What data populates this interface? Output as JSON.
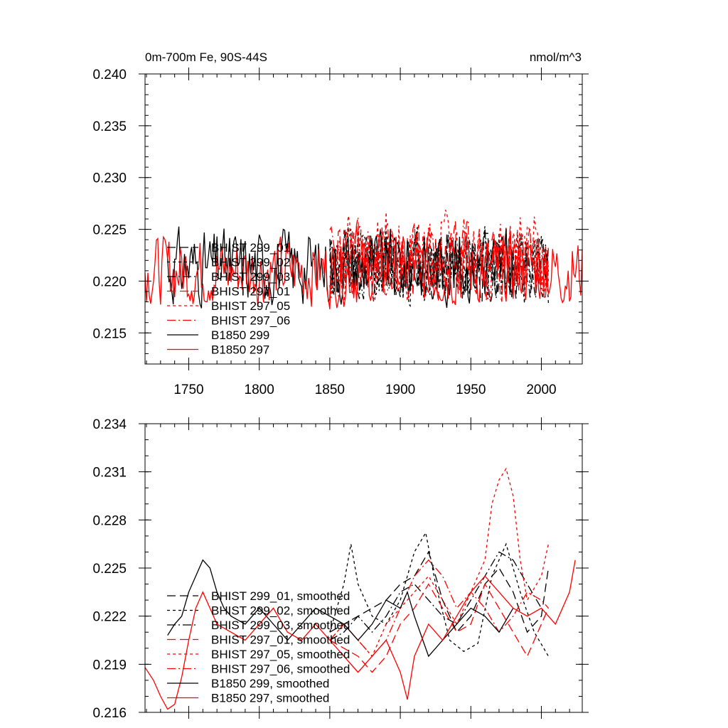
{
  "colors": {
    "black": "#000000",
    "red": "#ff0000"
  },
  "chart_data": [
    {
      "type": "line",
      "title": "0m-700m Fe, 90S-44S",
      "units": "nmol/m^3",
      "xlabel": "",
      "ylabel": "",
      "xlim": [
        1719,
        2029
      ],
      "ylim": [
        0.212,
        0.24
      ],
      "xticks": [
        1750,
        1800,
        1850,
        1900,
        1950,
        2000
      ],
      "xtick_labels": [
        "1750",
        "1800",
        "1850",
        "1900",
        "1950",
        "2000"
      ],
      "yticks": [
        0.215,
        0.22,
        0.225,
        0.23,
        0.235,
        0.24
      ],
      "ytick_labels": [
        "0.215",
        "0.220",
        "0.225",
        "0.230",
        "0.235",
        "0.240"
      ],
      "legend": [
        "BHIST 299_01",
        "BHIST 299_02",
        "BHIST 299_03",
        "BHIST 297_01",
        "BHIST 297_05",
        "BHIST 297_06",
        "B1850 299",
        "B1850 297"
      ],
      "series": [
        {
          "name": "BHIST 299_01",
          "color": "#000000",
          "dash": "long",
          "x_start": 1850,
          "x_end": 2005,
          "mean": 0.2215,
          "amp": 0.0035,
          "seed": 11
        },
        {
          "name": "BHIST 299_02",
          "color": "#000000",
          "dash": "short",
          "x_start": 1850,
          "x_end": 2005,
          "mean": 0.2215,
          "amp": 0.0038,
          "seed": 12
        },
        {
          "name": "BHIST 299_03",
          "color": "#000000",
          "dash": "dashdot",
          "x_start": 1850,
          "x_end": 2005,
          "mean": 0.2215,
          "amp": 0.0033,
          "seed": 13
        },
        {
          "name": "BHIST 297_01",
          "color": "#ff0000",
          "dash": "long",
          "x_start": 1850,
          "x_end": 2005,
          "mean": 0.222,
          "amp": 0.0035,
          "seed": 21
        },
        {
          "name": "BHIST 297_05",
          "color": "#ff0000",
          "dash": "short",
          "x_start": 1850,
          "x_end": 2005,
          "mean": 0.2225,
          "amp": 0.004,
          "seed": 22
        },
        {
          "name": "BHIST 297_06",
          "color": "#ff0000",
          "dash": "dashdot",
          "x_start": 1850,
          "x_end": 2005,
          "mean": 0.2222,
          "amp": 0.0035,
          "seed": 23
        },
        {
          "name": "B1850 299",
          "color": "#000000",
          "dash": "solid",
          "x_start": 1735,
          "x_end": 1980,
          "mean": 0.2215,
          "amp": 0.0035,
          "seed": 31
        },
        {
          "name": "B1850 297",
          "color": "#ff0000",
          "dash": "solid",
          "x_start": 1719,
          "x_end": 2029,
          "mean": 0.221,
          "amp": 0.0033,
          "seed": 32
        }
      ]
    },
    {
      "type": "line",
      "title": "",
      "xlabel": "",
      "ylabel": "",
      "xlim": [
        1719,
        2029
      ],
      "ylim": [
        0.216,
        0.234
      ],
      "xticks": [
        1750,
        1800,
        1850,
        1900,
        1950,
        2000
      ],
      "yticks": [
        0.216,
        0.219,
        0.222,
        0.225,
        0.228,
        0.231,
        0.234
      ],
      "ytick_labels": [
        "0.216",
        "0.219",
        "0.222",
        "0.225",
        "0.228",
        "0.231",
        "0.234"
      ],
      "legend": [
        "BHIST 299_01, smoothed",
        "BHIST 299_02, smoothed",
        "BHIST 299_03, smoothed",
        "BHIST 297_01, smoothed",
        "BHIST 297_05, smoothed",
        "BHIST 297_06, smoothed",
        "B1850 299, smoothed",
        "B1850 297, smoothed"
      ],
      "series": [
        {
          "name": "BHIST 299_01, smoothed",
          "color": "#000000",
          "dash": "long",
          "x": [
            1850,
            1870,
            1890,
            1900,
            1910,
            1920,
            1930,
            1940,
            1950,
            1960,
            1970,
            1980,
            1990,
            2000,
            2005
          ],
          "y": [
            0.221,
            0.222,
            0.223,
            0.224,
            0.2245,
            0.226,
            0.223,
            0.221,
            0.222,
            0.224,
            0.225,
            0.2235,
            0.221,
            0.222,
            0.225
          ]
        },
        {
          "name": "BHIST 299_02, smoothed",
          "color": "#000000",
          "dash": "short",
          "x": [
            1850,
            1860,
            1865,
            1870,
            1880,
            1890,
            1900,
            1910,
            1918,
            1925,
            1935,
            1945,
            1955,
            1965,
            1975,
            1985,
            1995,
            2005
          ],
          "y": [
            0.221,
            0.224,
            0.2265,
            0.224,
            0.222,
            0.2215,
            0.223,
            0.226,
            0.2272,
            0.224,
            0.2205,
            0.2198,
            0.2203,
            0.2245,
            0.2265,
            0.2235,
            0.221,
            0.2195
          ]
        },
        {
          "name": "BHIST 299_03, smoothed",
          "color": "#000000",
          "dash": "dashdot",
          "x": [
            1850,
            1860,
            1870,
            1880,
            1890,
            1900,
            1910,
            1920,
            1930,
            1940,
            1950,
            1960,
            1970,
            1980,
            1990,
            2000
          ],
          "y": [
            0.2205,
            0.221,
            0.222,
            0.221,
            0.222,
            0.2235,
            0.224,
            0.223,
            0.222,
            0.2215,
            0.223,
            0.2245,
            0.226,
            0.2255,
            0.224,
            0.2225
          ]
        },
        {
          "name": "BHIST 297_01, smoothed",
          "color": "#ff0000",
          "dash": "long",
          "x": [
            1850,
            1860,
            1870,
            1880,
            1890,
            1900,
            1910,
            1920,
            1930,
            1940,
            1950,
            1960,
            1970,
            1980,
            1990,
            2000,
            2005
          ],
          "y": [
            0.2205,
            0.22,
            0.2195,
            0.2185,
            0.2195,
            0.2215,
            0.2225,
            0.224,
            0.2225,
            0.221,
            0.2215,
            0.224,
            0.2225,
            0.221,
            0.2195,
            0.2215,
            0.2225
          ]
        },
        {
          "name": "BHIST 297_05, smoothed",
          "color": "#ff0000",
          "dash": "short",
          "x": [
            1850,
            1860,
            1870,
            1880,
            1890,
            1900,
            1910,
            1920,
            1930,
            1940,
            1950,
            1960,
            1965,
            1970,
            1975,
            1980,
            1985,
            1990,
            2000,
            2005
          ],
          "y": [
            0.2205,
            0.2215,
            0.2205,
            0.2195,
            0.2215,
            0.2225,
            0.2235,
            0.2245,
            0.223,
            0.2215,
            0.2235,
            0.2255,
            0.229,
            0.2305,
            0.2312,
            0.2295,
            0.2255,
            0.223,
            0.2245,
            0.2265
          ]
        },
        {
          "name": "BHIST 297_06, smoothed",
          "color": "#ff0000",
          "dash": "dashdot",
          "x": [
            1850,
            1860,
            1870,
            1880,
            1890,
            1900,
            1910,
            1920,
            1930,
            1940,
            1950,
            1960,
            1970,
            1980,
            1990,
            2000,
            2005
          ],
          "y": [
            0.2205,
            0.2215,
            0.2205,
            0.2195,
            0.2205,
            0.2225,
            0.2245,
            0.2255,
            0.2245,
            0.2225,
            0.2235,
            0.2225,
            0.221,
            0.222,
            0.2235,
            0.223,
            0.2225
          ]
        },
        {
          "name": "B1850 299, smoothed",
          "color": "#000000",
          "dash": "solid",
          "x": [
            1735,
            1740,
            1745,
            1750,
            1755,
            1760,
            1765,
            1770,
            1775,
            1780,
            1790,
            1800,
            1810,
            1820,
            1830,
            1840,
            1850,
            1860,
            1870,
            1880,
            1890,
            1900,
            1905,
            1910,
            1920,
            1930,
            1940,
            1950,
            1960,
            1970,
            1980
          ],
          "y": [
            0.2208,
            0.2215,
            0.222,
            0.2235,
            0.2245,
            0.2255,
            0.225,
            0.2235,
            0.2225,
            0.222,
            0.2215,
            0.2225,
            0.2215,
            0.2205,
            0.2215,
            0.2225,
            0.222,
            0.2215,
            0.2205,
            0.2215,
            0.223,
            0.2225,
            0.2235,
            0.222,
            0.2195,
            0.2205,
            0.2215,
            0.2225,
            0.222,
            0.221,
            0.2225
          ]
        },
        {
          "name": "B1850 297, smoothed",
          "color": "#ff0000",
          "dash": "solid",
          "x": [
            1719,
            1725,
            1730,
            1735,
            1740,
            1745,
            1750,
            1755,
            1760,
            1765,
            1770,
            1780,
            1790,
            1800,
            1810,
            1820,
            1830,
            1840,
            1850,
            1860,
            1870,
            1880,
            1890,
            1900,
            1905,
            1910,
            1920,
            1930,
            1940,
            1950,
            1960,
            1970,
            1980,
            1990,
            2000,
            2010,
            2020,
            2024
          ],
          "y": [
            0.2188,
            0.218,
            0.217,
            0.2162,
            0.2165,
            0.2182,
            0.2205,
            0.2225,
            0.2235,
            0.2225,
            0.2215,
            0.221,
            0.2205,
            0.2215,
            0.2225,
            0.221,
            0.2205,
            0.2215,
            0.2205,
            0.2195,
            0.2185,
            0.2195,
            0.2205,
            0.2185,
            0.2168,
            0.2195,
            0.2215,
            0.2205,
            0.222,
            0.2235,
            0.2245,
            0.2235,
            0.2225,
            0.222,
            0.2225,
            0.2215,
            0.2235,
            0.2255
          ]
        }
      ]
    }
  ]
}
